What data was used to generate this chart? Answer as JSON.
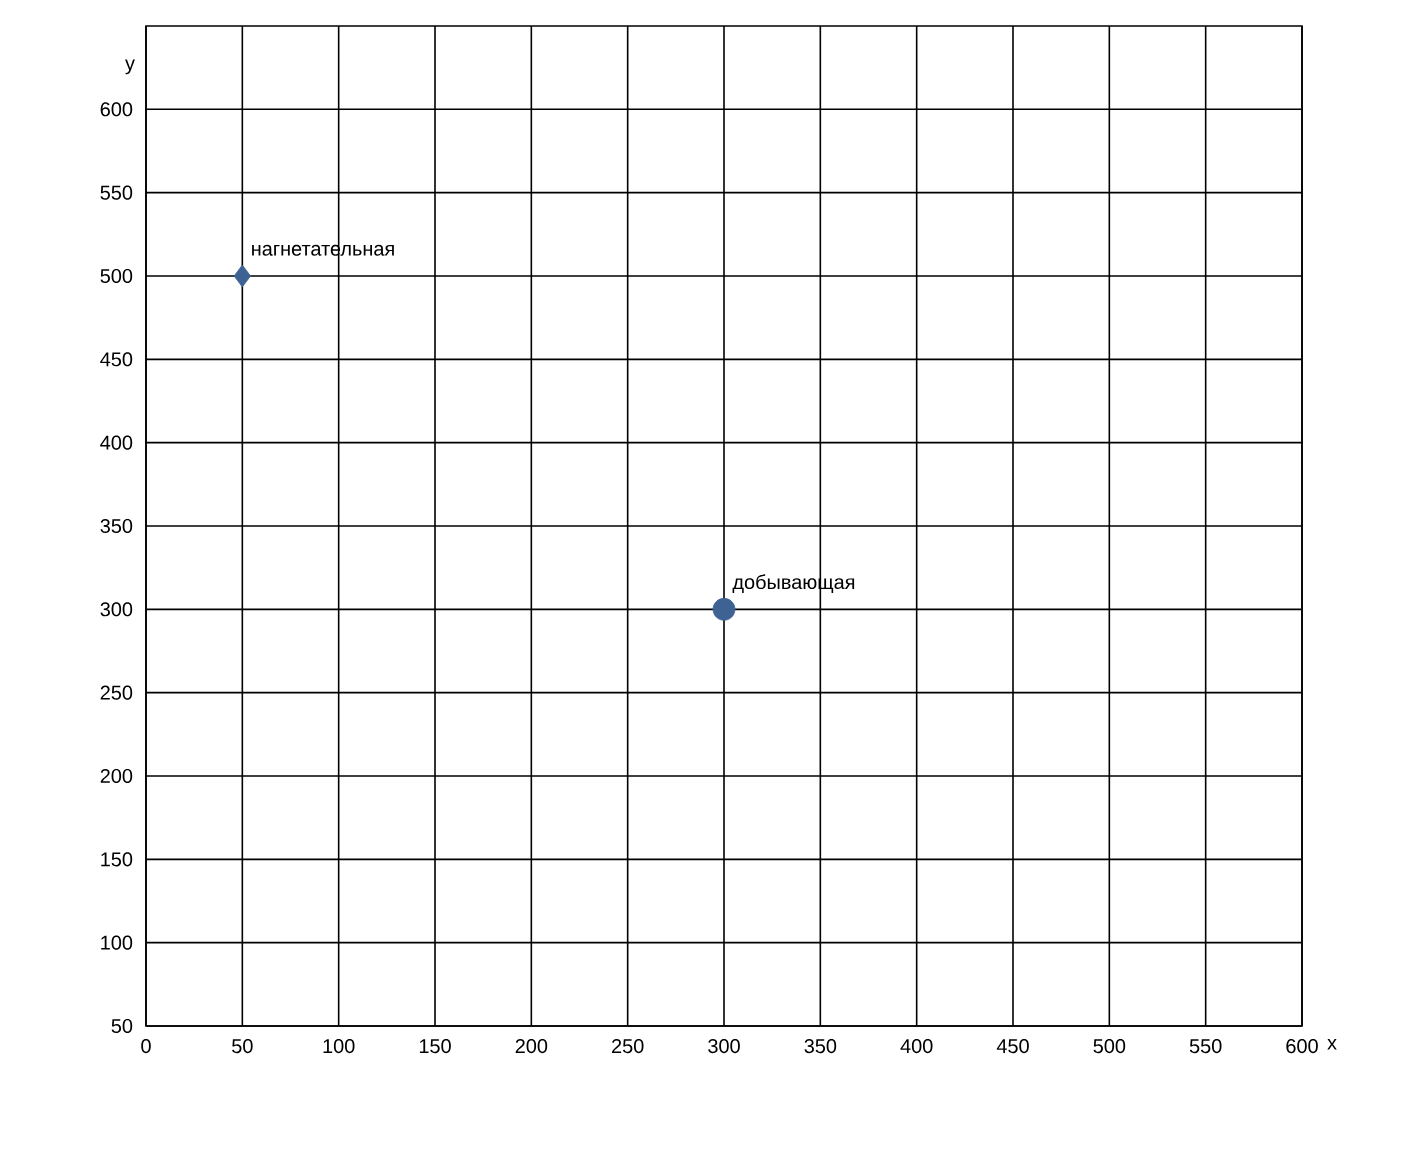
{
  "chart_data": {
    "type": "scatter",
    "xlabel": "x",
    "ylabel": "y",
    "xlim": [
      0,
      600
    ],
    "ylim": [
      50,
      650
    ],
    "xticks": [
      0,
      50,
      100,
      150,
      200,
      250,
      300,
      350,
      400,
      450,
      500,
      550,
      600
    ],
    "yticks": [
      50,
      100,
      150,
      200,
      250,
      300,
      350,
      400,
      450,
      500,
      550,
      600
    ],
    "grid": true,
    "series": [
      {
        "name": "нагнетательная",
        "color": "#3f6294",
        "marker": "diamond",
        "x": [
          50
        ],
        "values": [
          500
        ]
      },
      {
        "name": "добывающая",
        "color": "#3f6294",
        "marker": "circle",
        "x": [
          300
        ],
        "values": [
          300
        ]
      }
    ]
  }
}
